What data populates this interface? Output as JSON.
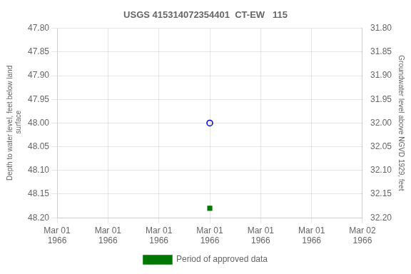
{
  "chart_data": {
    "type": "scatter",
    "title": "USGS 415314072354401  CT-EW   115",
    "ylabel": "Depth to water level, feet below land\n surface",
    "y2label": "Groundwater level above NGVD 1929, feet",
    "categories": [
      "Mar 01\n1966",
      "Mar 01\n1966",
      "Mar 01\n1966",
      "Mar 01\n1966",
      "Mar 01\n1966",
      "Mar 01\n1966",
      "Mar 02\n1966"
    ],
    "ylim": [
      48.2,
      47.8
    ],
    "yticks": [
      {
        "value": 47.8,
        "label": "47.80"
      },
      {
        "value": 47.85,
        "label": "47.85"
      },
      {
        "value": 47.9,
        "label": "47.90"
      },
      {
        "value": 47.95,
        "label": "47.95"
      },
      {
        "value": 48.0,
        "label": "48.00"
      },
      {
        "value": 48.05,
        "label": "48.05"
      },
      {
        "value": 48.1,
        "label": "48.10"
      },
      {
        "value": 48.15,
        "label": "48.15"
      },
      {
        "value": 48.2,
        "label": "48.20"
      }
    ],
    "y2lim": [
      32.2,
      31.8
    ],
    "y2ticks": [
      {
        "value": 31.8,
        "label": "31.80"
      },
      {
        "value": 31.85,
        "label": "31.85"
      },
      {
        "value": 31.9,
        "label": "31.90"
      },
      {
        "value": 31.95,
        "label": "31.95"
      },
      {
        "value": 32.0,
        "label": "32.00"
      },
      {
        "value": 32.05,
        "label": "32.05"
      },
      {
        "value": 32.1,
        "label": "32.10"
      },
      {
        "value": 32.15,
        "label": "32.15"
      },
      {
        "value": 32.2,
        "label": "32.20"
      }
    ],
    "grid": true,
    "legend": "bottom",
    "series": [
      {
        "color": "#0000cc",
        "marker": "open_circle",
        "values": [
          null,
          null,
          null,
          48.0,
          null,
          null,
          null
        ]
      },
      {
        "name": "Period of approved data",
        "color": "#007700",
        "marker": "square",
        "values": [
          null,
          null,
          null,
          48.18,
          null,
          null,
          null
        ]
      }
    ]
  }
}
